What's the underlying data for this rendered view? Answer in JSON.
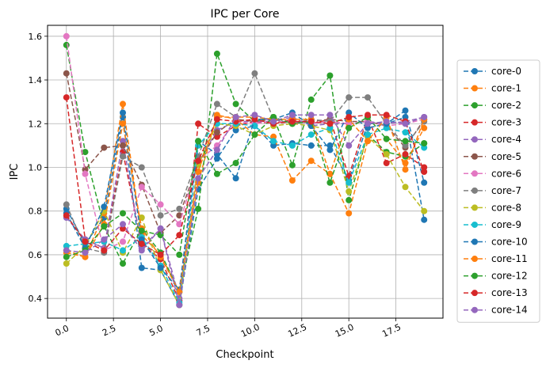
{
  "chart_data": {
    "type": "line",
    "title": "IPC per Core",
    "xlabel": "Checkpoint",
    "ylabel": "IPC",
    "xlim": [
      -1,
      20
    ],
    "ylim": [
      0.31,
      1.65
    ],
    "x_ticks": [
      0.0,
      2.5,
      5.0,
      7.5,
      10.0,
      12.5,
      15.0,
      17.5
    ],
    "x_tick_labels": [
      "0.0",
      "2.5",
      "5.0",
      "7.5",
      "10.0",
      "12.5",
      "15.0",
      "17.5"
    ],
    "y_ticks": [
      0.4,
      0.6,
      0.8,
      1.0,
      1.2,
      1.4,
      1.6
    ],
    "y_tick_labels": [
      "0.4",
      "0.6",
      "0.8",
      "1.0",
      "1.2",
      "1.4",
      "1.6"
    ],
    "grid": true,
    "legend_position": "right",
    "x": [
      0,
      1,
      2,
      3,
      4,
      5,
      6,
      7,
      8,
      9,
      10,
      11,
      12,
      13,
      14,
      15,
      16,
      17,
      18,
      19
    ],
    "series": [
      {
        "name": "core-0",
        "color": "#1f77b4",
        "values": [
          0.81,
          0.65,
          0.77,
          1.23,
          0.54,
          0.53,
          0.37,
          0.9,
          1.04,
          1.17,
          1.19,
          1.1,
          1.11,
          1.1,
          1.1,
          0.94,
          1.2,
          1.2,
          1.23,
          0.76
        ]
      },
      {
        "name": "core-1",
        "color": "#ff7f0e",
        "values": [
          0.61,
          0.59,
          0.79,
          1.29,
          0.69,
          0.6,
          0.43,
          0.93,
          1.24,
          1.22,
          1.15,
          1.14,
          0.94,
          1.03,
          0.97,
          0.79,
          1.12,
          1.13,
          1.02,
          1.18
        ]
      },
      {
        "name": "core-2",
        "color": "#2ca02c",
        "values": [
          1.56,
          1.07,
          0.73,
          0.56,
          0.72,
          0.61,
          0.43,
          0.81,
          1.52,
          1.29,
          1.21,
          1.23,
          1.01,
          1.31,
          1.42,
          0.85,
          1.15,
          1.07,
          1.05,
          1.11
        ]
      },
      {
        "name": "core-3",
        "color": "#d62728",
        "values": [
          1.32,
          0.67,
          0.63,
          1.07,
          0.65,
          0.58,
          0.39,
          1.2,
          1.14,
          1.19,
          1.21,
          1.2,
          1.22,
          1.2,
          1.22,
          0.96,
          1.23,
          1.02,
          1.06,
          1.0
        ]
      },
      {
        "name": "core-4",
        "color": "#9467bd",
        "values": [
          0.77,
          0.67,
          0.63,
          1.12,
          0.63,
          0.72,
          0.4,
          1.02,
          1.17,
          1.21,
          1.21,
          1.21,
          1.23,
          1.19,
          1.2,
          1.2,
          1.21,
          1.2,
          1.21,
          1.23
        ]
      },
      {
        "name": "core-5",
        "color": "#8c564b",
        "values": [
          1.43,
          0.99,
          1.09,
          1.1,
          0.92,
          0.7,
          0.78,
          1.02,
          1.16,
          1.22,
          1.21,
          1.22,
          1.2,
          1.21,
          1.22,
          1.21,
          1.21,
          1.19,
          1.09,
          1.22
        ]
      },
      {
        "name": "core-6",
        "color": "#e377c2",
        "values": [
          1.6,
          0.97,
          0.62,
          0.66,
          0.91,
          0.83,
          0.74,
          1.03,
          1.1,
          1.21,
          1.2,
          1.21,
          1.21,
          1.2,
          1.21,
          1.2,
          1.21,
          1.19,
          1.2,
          1.22
        ]
      },
      {
        "name": "core-7",
        "color": "#7f7f7f",
        "values": [
          0.83,
          0.63,
          0.61,
          1.05,
          1.0,
          0.78,
          0.81,
          1.05,
          1.29,
          1.23,
          1.43,
          1.22,
          1.2,
          1.22,
          1.21,
          1.32,
          1.32,
          1.2,
          1.1,
          1.21
        ]
      },
      {
        "name": "core-8",
        "color": "#bcbd22",
        "values": [
          0.56,
          0.64,
          0.8,
          0.61,
          0.77,
          0.53,
          0.37,
          1.01,
          1.2,
          1.19,
          1.15,
          1.19,
          1.2,
          1.19,
          1.17,
          0.89,
          1.14,
          1.06,
          0.91,
          0.8
        ]
      },
      {
        "name": "core-9",
        "color": "#17becf",
        "values": [
          0.64,
          0.65,
          0.66,
          0.62,
          0.68,
          0.55,
          0.38,
          1.1,
          1.2,
          1.2,
          1.19,
          1.12,
          1.1,
          1.15,
          1.18,
          0.93,
          1.15,
          1.18,
          1.16,
          1.09
        ]
      },
      {
        "name": "core-10",
        "color": "#1f77b4",
        "values": [
          0.79,
          0.63,
          0.82,
          1.25,
          0.67,
          0.54,
          0.44,
          1.12,
          1.06,
          0.95,
          1.22,
          1.22,
          1.25,
          1.19,
          1.08,
          1.25,
          1.18,
          1.2,
          1.26,
          0.93
        ]
      },
      {
        "name": "core-11",
        "color": "#ff7f0e",
        "values": [
          0.62,
          0.59,
          0.74,
          1.2,
          0.72,
          0.59,
          0.43,
          0.98,
          1.23,
          1.23,
          1.23,
          1.22,
          1.22,
          1.22,
          0.97,
          1.22,
          1.12,
          1.23,
          0.99,
          1.22
        ]
      },
      {
        "name": "core-12",
        "color": "#2ca02c",
        "values": [
          0.59,
          0.62,
          0.73,
          0.79,
          0.71,
          0.69,
          0.6,
          1.12,
          0.97,
          1.02,
          1.15,
          1.23,
          1.2,
          1.21,
          0.93,
          1.18,
          1.23,
          1.13,
          1.12,
          1.11
        ]
      },
      {
        "name": "core-13",
        "color": "#d62728",
        "values": [
          0.78,
          0.66,
          0.62,
          0.72,
          0.65,
          0.6,
          0.69,
          1.03,
          1.22,
          1.21,
          1.22,
          1.2,
          1.21,
          1.21,
          1.2,
          1.23,
          1.24,
          1.24,
          1.21,
          0.98
        ]
      },
      {
        "name": "core-14",
        "color": "#9467bd",
        "values": [
          0.62,
          0.61,
          0.67,
          0.74,
          0.62,
          0.72,
          0.37,
          0.95,
          1.08,
          1.23,
          1.24,
          1.21,
          1.24,
          1.24,
          1.24,
          1.1,
          1.2,
          1.21,
          1.2,
          1.23
        ]
      }
    ]
  }
}
